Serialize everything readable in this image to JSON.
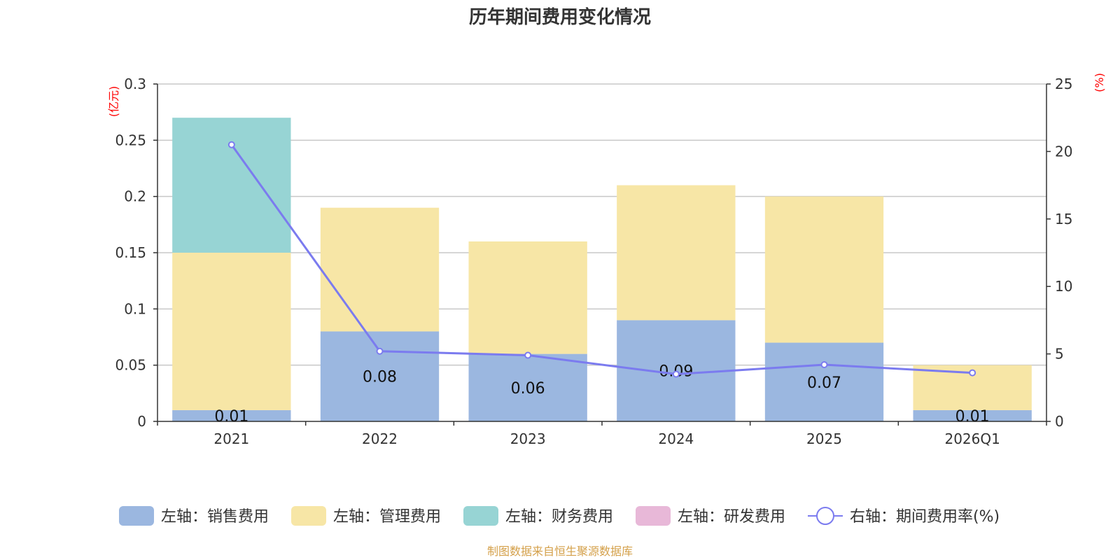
{
  "chart_data": {
    "type": "bar",
    "title": "历年期间费用变化情况",
    "categories": [
      "2021",
      "2022",
      "2023",
      "2024",
      "2025",
      "2026Q1"
    ],
    "left_axis": {
      "unit": "(亿元)",
      "ylim": [
        0,
        0.3
      ],
      "ticks": [
        "0",
        "0.05",
        "0.1",
        "0.15",
        "0.2",
        "0.25",
        "0.3"
      ]
    },
    "right_axis": {
      "unit": "(%)",
      "ylim": [
        0,
        25
      ],
      "ticks": [
        "0",
        "5",
        "10",
        "15",
        "20",
        "25"
      ]
    },
    "series": [
      {
        "name": "左轴：销售费用",
        "axis": "left",
        "kind": "bar",
        "color": "#9bb7e0",
        "values": [
          0.01,
          0.08,
          0.06,
          0.09,
          0.07,
          0.01
        ],
        "labels": [
          "0.01",
          "0.08",
          "0.06",
          "0.09",
          "0.07",
          "0.01"
        ]
      },
      {
        "name": "左轴：管理费用",
        "axis": "left",
        "kind": "bar",
        "color": "#f7e6a6",
        "values": [
          0.14,
          0.11,
          0.1,
          0.12,
          0.13,
          0.04
        ]
      },
      {
        "name": "左轴：财务费用",
        "axis": "left",
        "kind": "bar",
        "color": "#97d4d4",
        "values": [
          0.12,
          0.0,
          0.0,
          0.0,
          0.0,
          0.0
        ]
      },
      {
        "name": "左轴：研发费用",
        "axis": "left",
        "kind": "bar",
        "color": "#e8b8d8",
        "values": [
          0.0,
          0.0,
          0.0,
          0.0,
          0.0,
          0.0
        ]
      },
      {
        "name": "右轴：期间费用率(%)",
        "axis": "right",
        "kind": "line",
        "color": "#7b7bef",
        "values": [
          20.5,
          5.2,
          4.9,
          3.5,
          4.2,
          3.6
        ]
      }
    ],
    "legend_position": "bottom",
    "grid": true
  },
  "source_text": "制图数据来自恒生聚源数据库",
  "colors": {
    "axis_unit": "#ff0000",
    "source": "#d4a04a",
    "grid": "#c8c8c8"
  }
}
